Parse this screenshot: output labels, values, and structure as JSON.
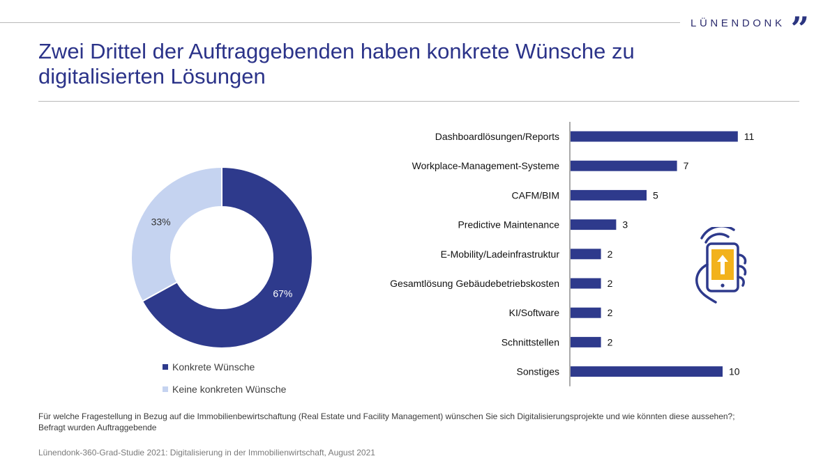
{
  "brand": {
    "name": "LÜNENDONK",
    "mark": "”"
  },
  "title": {
    "line1": "Zwei Drittel der Auftraggebenden haben konkrete Wünsche zu",
    "line2": "digitalisierten Lösungen"
  },
  "colors": {
    "primary": "#2e3a8c",
    "secondary": "#c5d3f0",
    "accent": "#f2b21c"
  },
  "chart_data": [
    {
      "type": "pie",
      "variant": "donut",
      "title": "",
      "labels": [
        "Konkrete Wünsche",
        "Keine konkreten Wünsche"
      ],
      "values": [
        67,
        33
      ],
      "value_labels": [
        "67%",
        "33%"
      ],
      "legend": "bottom"
    },
    {
      "type": "bar",
      "orientation": "horizontal",
      "title": "",
      "categories": [
        "Dashboardlösungen/Reports",
        "Workplace-Management-Systeme",
        "CAFM/BIM",
        "Predictive Maintenance",
        "E-Mobility/Ladeinfrastruktur",
        "Gesamtlösung Gebäudebetriebskosten",
        "KI/Software",
        "Schnittstellen",
        "Sonstiges"
      ],
      "values": [
        11,
        7,
        5,
        3,
        2,
        2,
        2,
        2,
        10
      ],
      "xlim": [
        0,
        11
      ],
      "grid": false
    }
  ],
  "footnote": {
    "question_line1": "Für welche Fragestellung in Bezug auf die Immobilienbewirtschaftung (Real Estate und Facility Management) wünschen Sie sich Digitalisierungsprojekte und wie könnten diese aussehen?;",
    "question_line2": "Befragt wurden Auftraggebende",
    "source": "Lünendonk-360-Grad-Studie 2021: Digitalisierung in der Immobilienwirtschaft, August 2021"
  }
}
